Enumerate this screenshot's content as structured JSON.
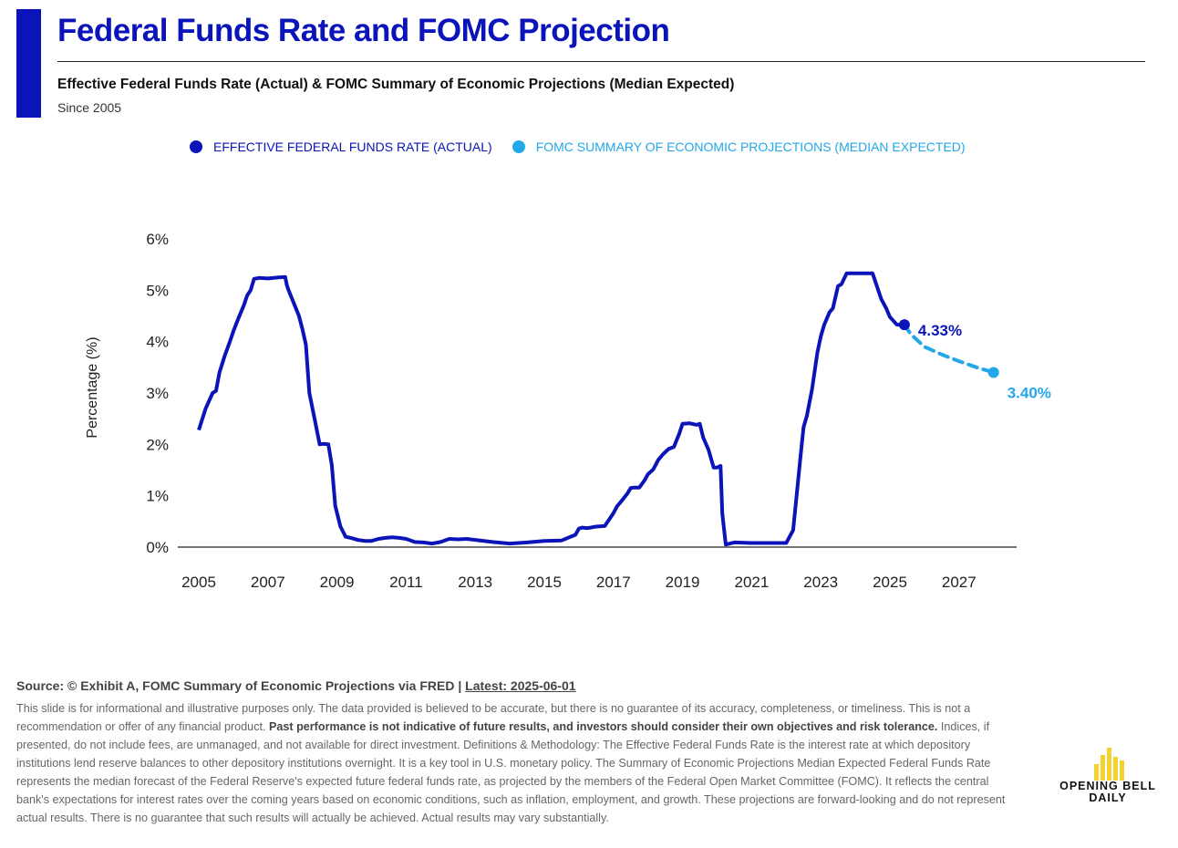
{
  "header": {
    "title": "Federal Funds Rate and FOMC Projection",
    "subtitle": "Effective Federal Funds Rate (Actual) & FOMC Summary of Economic Projections (Median Expected)",
    "since": "Since 2005"
  },
  "legend": {
    "actual": "EFFECTIVE FEDERAL FUNDS RATE (ACTUAL)",
    "projection": "FOMC SUMMARY OF ECONOMIC PROJECTIONS (MEDIAN EXPECTED)"
  },
  "colors": {
    "brand": "#0a14b8",
    "actual": "#0a14b8",
    "projection": "#22a8e8",
    "logo": "#f2d22e"
  },
  "chart_data": {
    "type": "line",
    "ylabel": "Percentage (%)",
    "ylim": [
      0,
      6
    ],
    "xlim": [
      2005,
      2029
    ],
    "y_ticks": [
      "0%",
      "1%",
      "2%",
      "3%",
      "4%",
      "5%",
      "6%"
    ],
    "x_ticks": [
      "2005",
      "2007",
      "2009",
      "2011",
      "2013",
      "2015",
      "2017",
      "2019",
      "2021",
      "2023",
      "2025",
      "2027"
    ],
    "series": [
      {
        "name": "Effective Federal Funds Rate (Actual)",
        "style": "solid",
        "x": [
          2005.0,
          2005.2,
          2005.4,
          2005.5,
          2005.6,
          2005.75,
          2005.9,
          2006.0,
          2006.15,
          2006.3,
          2006.4,
          2006.5,
          2006.6,
          2006.75,
          2007.0,
          2007.3,
          2007.5,
          2007.55,
          2007.6,
          2007.75,
          2007.9,
          2008.0,
          2008.1,
          2008.2,
          2008.35,
          2008.5,
          2008.6,
          2008.75,
          2008.85,
          2008.95,
          2009.1,
          2009.25,
          2009.4,
          2009.6,
          2009.8,
          2010.0,
          2010.2,
          2010.4,
          2010.6,
          2010.8,
          2011.0,
          2011.25,
          2011.5,
          2011.75,
          2012.0,
          2012.25,
          2012.5,
          2012.75,
          2013.0,
          2013.5,
          2014.0,
          2014.5,
          2015.0,
          2015.5,
          2015.9,
          2016.0,
          2016.1,
          2016.25,
          2016.5,
          2016.75,
          2017.0,
          2017.1,
          2017.25,
          2017.4,
          2017.5,
          2017.6,
          2017.75,
          2017.9,
          2018.0,
          2018.15,
          2018.3,
          2018.45,
          2018.6,
          2018.75,
          2018.9,
          2019.0,
          2019.2,
          2019.4,
          2019.5,
          2019.6,
          2019.75,
          2019.9,
          2020.0,
          2020.1,
          2020.15,
          2020.25,
          2020.5,
          2021.0,
          2021.5,
          2022.0,
          2022.2,
          2022.3,
          2022.4,
          2022.5,
          2022.6,
          2022.75,
          2022.9,
          2023.0,
          2023.1,
          2023.25,
          2023.35,
          2023.5,
          2023.6,
          2023.75,
          2024.0,
          2024.5,
          2024.6,
          2024.75,
          2024.9,
          2025.0,
          2025.2,
          2025.42
        ],
        "values": [
          2.28,
          2.7,
          3.0,
          3.04,
          3.4,
          3.72,
          4.0,
          4.2,
          4.46,
          4.7,
          4.9,
          5.0,
          5.22,
          5.24,
          5.23,
          5.25,
          5.26,
          5.1,
          5.0,
          4.75,
          4.5,
          4.24,
          3.94,
          3.0,
          2.5,
          2.0,
          2.01,
          2.0,
          1.6,
          0.8,
          0.4,
          0.2,
          0.18,
          0.14,
          0.12,
          0.12,
          0.16,
          0.18,
          0.19,
          0.18,
          0.16,
          0.1,
          0.09,
          0.07,
          0.1,
          0.16,
          0.15,
          0.16,
          0.14,
          0.1,
          0.07,
          0.09,
          0.12,
          0.13,
          0.24,
          0.36,
          0.38,
          0.37,
          0.4,
          0.41,
          0.66,
          0.79,
          0.91,
          1.04,
          1.15,
          1.16,
          1.16,
          1.3,
          1.42,
          1.51,
          1.7,
          1.82,
          1.91,
          1.95,
          2.2,
          2.4,
          2.41,
          2.38,
          2.4,
          2.13,
          1.9,
          1.55,
          1.55,
          1.58,
          0.65,
          0.05,
          0.09,
          0.08,
          0.08,
          0.08,
          0.33,
          1.0,
          1.68,
          2.33,
          2.56,
          3.08,
          3.78,
          4.1,
          4.33,
          4.57,
          4.65,
          5.08,
          5.12,
          5.33,
          5.33,
          5.33,
          5.13,
          4.83,
          4.64,
          4.48,
          4.33,
          4.33
        ]
      },
      {
        "name": "FOMC Summary of Economic Projections (Median Expected)",
        "style": "dashed",
        "x": [
          2025.42,
          2025.6,
          2026.0,
          2026.5,
          2027.0,
          2027.5,
          2028.0
        ],
        "values": [
          4.33,
          4.15,
          3.9,
          3.75,
          3.62,
          3.5,
          3.4
        ]
      }
    ],
    "annotations": {
      "last_actual": "4.33%",
      "last_projection": "3.40%"
    }
  },
  "footer": {
    "source": "Source: © Exhibit A, FOMC Summary of Economic Projections via FRED",
    "separator": " | ",
    "latest": "Latest: 2025-06-01",
    "disclaimer_a": "This slide is for informational and illustrative purposes only. The data provided is believed to be accurate, but there is no guarantee of its accuracy, completeness, or timeliness. This is not a recommendation or offer of any financial product. ",
    "disclaimer_bold": "Past performance is not indicative of future results, and investors should consider their own objectives and risk tolerance.",
    "disclaimer_b": " Indices, if presented, do not include fees, are unmanaged, and not available for direct investment. Definitions & Methodology: The Effective Federal Funds Rate is the interest rate at which depository institutions lend reserve balances to other depository institutions overnight. It is a key tool in U.S. monetary policy. The Summary of Economic Projections Median Expected Federal Funds Rate represents the median forecast of the Federal Reserve's expected future federal funds rate, as projected by the members of the Federal Open Market Committee (FOMC). It reflects the central bank's expectations for interest rates over the coming years based on economic conditions, such as inflation, employment, and growth. These projections are forward-looking and do not represent actual results. There is no guarantee that such results will actually be achieved. Actual results may vary substantially."
  },
  "logo": {
    "line1": "OPENING BELL",
    "line2": "DAILY",
    "icon": "bar-chart-icon"
  }
}
